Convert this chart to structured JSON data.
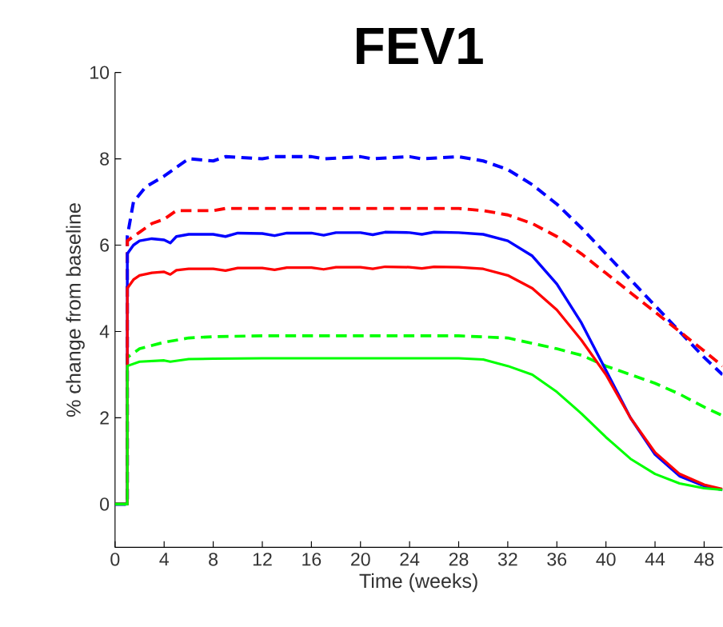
{
  "chart_data": {
    "type": "line",
    "title": "FEV1",
    "xlabel": "Time (weeks)",
    "ylabel": "% change from baseline",
    "xlim": [
      0,
      49.5
    ],
    "ylim": [
      -1,
      10
    ],
    "xticks": [
      0,
      4,
      8,
      12,
      16,
      20,
      24,
      28,
      32,
      36,
      40,
      44,
      48
    ],
    "yticks": [
      0,
      2,
      4,
      6,
      8,
      10
    ],
    "series": [
      {
        "color": "#0000ff",
        "line_style": "dashed",
        "x": [
          0,
          1,
          1,
          1.5,
          2.5,
          4,
          5,
          6,
          8,
          9,
          12,
          13,
          16,
          17,
          20,
          21,
          24,
          25,
          28,
          30,
          32,
          34,
          36,
          38,
          40,
          42,
          44,
          46,
          48,
          49.5
        ],
        "values": [
          0,
          0,
          6.2,
          7.0,
          7.35,
          7.6,
          7.8,
          8.0,
          7.95,
          8.05,
          8.0,
          8.05,
          8.05,
          8.0,
          8.05,
          8.0,
          8.05,
          8.0,
          8.05,
          7.95,
          7.75,
          7.4,
          6.95,
          6.4,
          5.8,
          5.2,
          4.6,
          4.0,
          3.4,
          3.0
        ]
      },
      {
        "color": "#ff0000",
        "line_style": "dashed",
        "x": [
          0,
          1,
          1,
          2,
          3,
          4,
          5,
          6,
          8,
          9,
          12,
          13,
          16,
          17,
          20,
          21,
          24,
          25,
          28,
          30,
          32,
          34,
          36,
          38,
          40,
          42,
          44,
          46,
          48,
          49.5
        ],
        "values": [
          0,
          0,
          6.1,
          6.3,
          6.5,
          6.6,
          6.8,
          6.8,
          6.8,
          6.85,
          6.85,
          6.85,
          6.85,
          6.85,
          6.85,
          6.85,
          6.85,
          6.85,
          6.85,
          6.8,
          6.7,
          6.5,
          6.2,
          5.8,
          5.35,
          4.9,
          4.45,
          4.0,
          3.55,
          3.2
        ]
      },
      {
        "color": "#00ff00",
        "line_style": "dashed",
        "x": [
          0,
          1,
          1,
          2,
          4,
          6,
          8,
          12,
          16,
          20,
          24,
          28,
          32,
          36,
          38,
          40,
          42,
          44,
          46,
          48,
          49.5
        ],
        "values": [
          0,
          0,
          3.4,
          3.6,
          3.75,
          3.85,
          3.88,
          3.9,
          3.9,
          3.9,
          3.9,
          3.9,
          3.85,
          3.6,
          3.45,
          3.2,
          3.0,
          2.8,
          2.55,
          2.25,
          2.05
        ]
      },
      {
        "color": "#0000ff",
        "line_style": "solid",
        "x": [
          0,
          1,
          1,
          1.5,
          2,
          3,
          4,
          4.5,
          5,
          6,
          8,
          9,
          10,
          12,
          13,
          14,
          16,
          17,
          18,
          20,
          21,
          22,
          24,
          25,
          26,
          28,
          30,
          32,
          34,
          36,
          38,
          40,
          42,
          44,
          46,
          48,
          49.5
        ],
        "values": [
          0,
          0,
          5.8,
          6.0,
          6.1,
          6.15,
          6.12,
          6.05,
          6.2,
          6.25,
          6.25,
          6.2,
          6.28,
          6.27,
          6.22,
          6.28,
          6.28,
          6.23,
          6.29,
          6.29,
          6.24,
          6.3,
          6.29,
          6.25,
          6.3,
          6.29,
          6.25,
          6.1,
          5.75,
          5.1,
          4.2,
          3.1,
          2.0,
          1.15,
          0.65,
          0.42,
          0.33
        ]
      },
      {
        "color": "#ff0000",
        "line_style": "solid",
        "x": [
          0,
          1,
          1,
          1.5,
          2,
          3,
          4,
          4.5,
          5,
          6,
          8,
          9,
          10,
          12,
          13,
          14,
          16,
          17,
          18,
          20,
          21,
          22,
          24,
          25,
          26,
          28,
          30,
          32,
          34,
          36,
          38,
          40,
          42,
          44,
          46,
          48,
          49.5
        ],
        "values": [
          0,
          0,
          5.0,
          5.2,
          5.3,
          5.36,
          5.38,
          5.32,
          5.42,
          5.45,
          5.45,
          5.41,
          5.47,
          5.47,
          5.43,
          5.48,
          5.48,
          5.44,
          5.49,
          5.49,
          5.45,
          5.5,
          5.49,
          5.46,
          5.5,
          5.49,
          5.45,
          5.3,
          5.0,
          4.5,
          3.8,
          3.0,
          2.0,
          1.2,
          0.7,
          0.45,
          0.35
        ]
      },
      {
        "color": "#00ff00",
        "line_style": "solid",
        "x": [
          0,
          1,
          1,
          2,
          4,
          4.5,
          6,
          8,
          12,
          16,
          20,
          24,
          28,
          30,
          32,
          34,
          36,
          38,
          40,
          42,
          44,
          46,
          48,
          49.5
        ],
        "values": [
          0,
          0,
          3.2,
          3.3,
          3.33,
          3.3,
          3.36,
          3.37,
          3.38,
          3.38,
          3.38,
          3.38,
          3.38,
          3.35,
          3.2,
          3.0,
          2.6,
          2.1,
          1.55,
          1.05,
          0.7,
          0.48,
          0.37,
          0.33
        ]
      }
    ]
  }
}
